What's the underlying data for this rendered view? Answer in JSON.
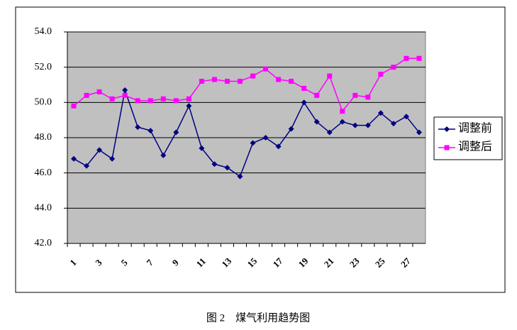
{
  "chart_data": {
    "type": "line",
    "caption": "图 2　煤气利用趋势图",
    "categories": [
      "1",
      null,
      "3",
      null,
      "5",
      null,
      "7",
      null,
      "9",
      null,
      "11",
      null,
      "13",
      null,
      "15",
      null,
      "17",
      null,
      "19",
      null,
      "21",
      null,
      "23",
      null,
      "25",
      null,
      "27",
      null
    ],
    "series": [
      {
        "name": "调整前",
        "color": "#000080",
        "marker": "diamond",
        "values": [
          46.8,
          46.4,
          47.3,
          46.8,
          50.7,
          48.6,
          48.4,
          47.0,
          48.3,
          49.8,
          47.4,
          46.5,
          46.3,
          45.8,
          47.7,
          48.0,
          47.5,
          48.5,
          50.0,
          48.9,
          48.3,
          48.9,
          48.7,
          48.7,
          49.4,
          48.8,
          49.2,
          48.3
        ]
      },
      {
        "name": "调整后",
        "color": "#ff00ff",
        "marker": "square",
        "values": [
          49.8,
          50.4,
          50.6,
          50.2,
          50.4,
          50.1,
          50.1,
          50.2,
          50.1,
          50.2,
          51.2,
          51.3,
          51.2,
          51.2,
          51.5,
          51.9,
          51.3,
          51.2,
          50.8,
          50.4,
          51.5,
          49.5,
          50.4,
          50.3,
          51.6,
          52.0,
          52.5,
          52.5
        ]
      }
    ],
    "ylim": [
      42,
      54
    ],
    "yticks": [
      {
        "value": 42,
        "label": "42.0"
      },
      {
        "value": 44,
        "label": "44.0"
      },
      {
        "value": 46,
        "label": "46.0"
      },
      {
        "value": 48,
        "label": "48.0"
      },
      {
        "value": 50,
        "label": "50.0"
      },
      {
        "value": 52,
        "label": "52.0"
      },
      {
        "value": 54,
        "label": "54.0"
      }
    ],
    "grid": true,
    "legend": "right",
    "plot_background": "#c0c0c0"
  }
}
